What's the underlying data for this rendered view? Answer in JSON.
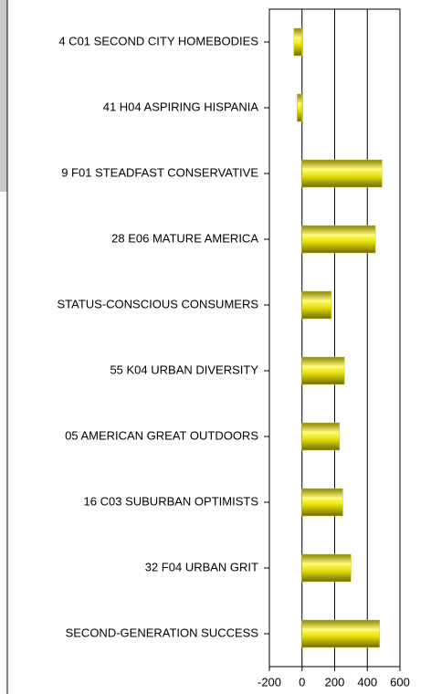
{
  "chart_data": {
    "type": "bar",
    "orientation": "horizontal",
    "categories": [
      "4 C01 SECOND CITY HOMEBODIES",
      "41 H04 ASPIRING HISPANIA",
      "9 F01 STEADFAST CONSERVATIVE",
      "28 E06 MATURE AMERICA",
      "STATUS-CONSCIOUS CONSUMERS",
      "55 K04 URBAN DIVERSITY",
      "05 AMERICAN GREAT OUTDOORS",
      "16 C03 SUBURBAN OPTIMISTS",
      "32 F04 URBAN GRIT",
      "SECOND-GENERATION SUCCESS"
    ],
    "values": [
      -50,
      -30,
      490,
      450,
      180,
      260,
      230,
      250,
      300,
      475
    ],
    "color": "#d4cc00",
    "xlim": [
      -200,
      600
    ],
    "xticks": [
      -200,
      0,
      200,
      400,
      600
    ],
    "grid": true
  }
}
